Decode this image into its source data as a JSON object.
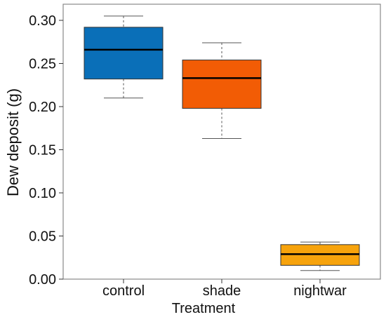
{
  "chart_data": {
    "type": "boxplot",
    "title": "",
    "xlabel": "Treatment",
    "ylabel": "Dew deposit (g)",
    "ylim": [
      -0.005,
      0.315
    ],
    "yticks": [
      0.0,
      0.05,
      0.1,
      0.15,
      0.2,
      0.25,
      0.3
    ],
    "ytick_labels": [
      "0.00",
      "0.05",
      "0.10",
      "0.15",
      "0.20",
      "0.25",
      "0.30"
    ],
    "grid": false,
    "categories": [
      "control",
      "shade",
      "nightwar"
    ],
    "boxes": [
      {
        "category": "control",
        "min": 0.21,
        "q1": 0.232,
        "median": 0.266,
        "q3": 0.292,
        "max": 0.305,
        "color": "#0a6fb8"
      },
      {
        "category": "shade",
        "min": 0.163,
        "q1": 0.198,
        "median": 0.233,
        "q3": 0.254,
        "max": 0.274,
        "color": "#f25c05"
      },
      {
        "category": "nightwar",
        "min": 0.01,
        "q1": 0.016,
        "median": 0.029,
        "q3": 0.04,
        "max": 0.043,
        "color": "#f7a30c"
      }
    ]
  }
}
